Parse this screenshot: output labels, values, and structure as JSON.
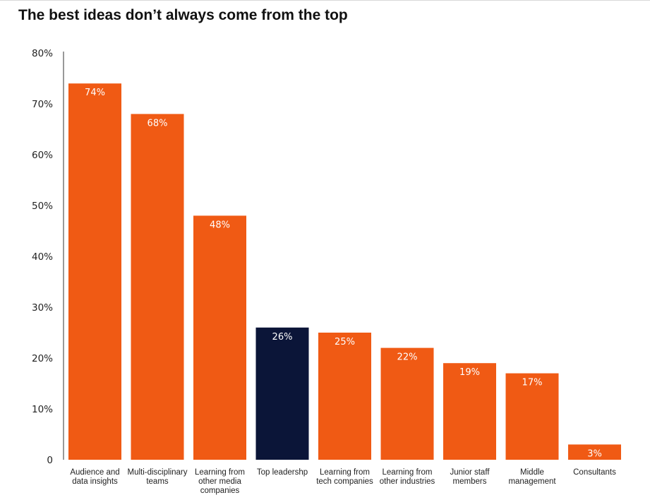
{
  "chart_data": {
    "type": "bar",
    "title": "The best ideas don’t always come from the top",
    "xlabel": "",
    "ylabel": "",
    "ylim": [
      0,
      80
    ],
    "yticks": [
      "0",
      "10%",
      "20%",
      "30%",
      "40%",
      "50%",
      "60%",
      "70%",
      "80%"
    ],
    "grid": false,
    "categories": [
      [
        "Audience and",
        "data insights"
      ],
      [
        "Multi-disciplinary",
        "teams"
      ],
      [
        "Learning from",
        "other media",
        "companies"
      ],
      [
        "Top leadershp"
      ],
      [
        "Learning from",
        "tech companies"
      ],
      [
        "Learning from",
        "other industries"
      ],
      [
        "Junior staff",
        "members"
      ],
      [
        "Middle",
        "management"
      ],
      [
        "Consultants"
      ]
    ],
    "values": [
      74,
      68,
      48,
      26,
      25,
      22,
      19,
      17,
      3
    ],
    "value_labels": [
      "74%",
      "68%",
      "48%",
      "26%",
      "25%",
      "22%",
      "19%",
      "17%",
      "3%"
    ],
    "highlight_index": 3,
    "colors": {
      "bar": "#f05a14",
      "highlight": "#0b1538",
      "axis": "#333333"
    }
  }
}
